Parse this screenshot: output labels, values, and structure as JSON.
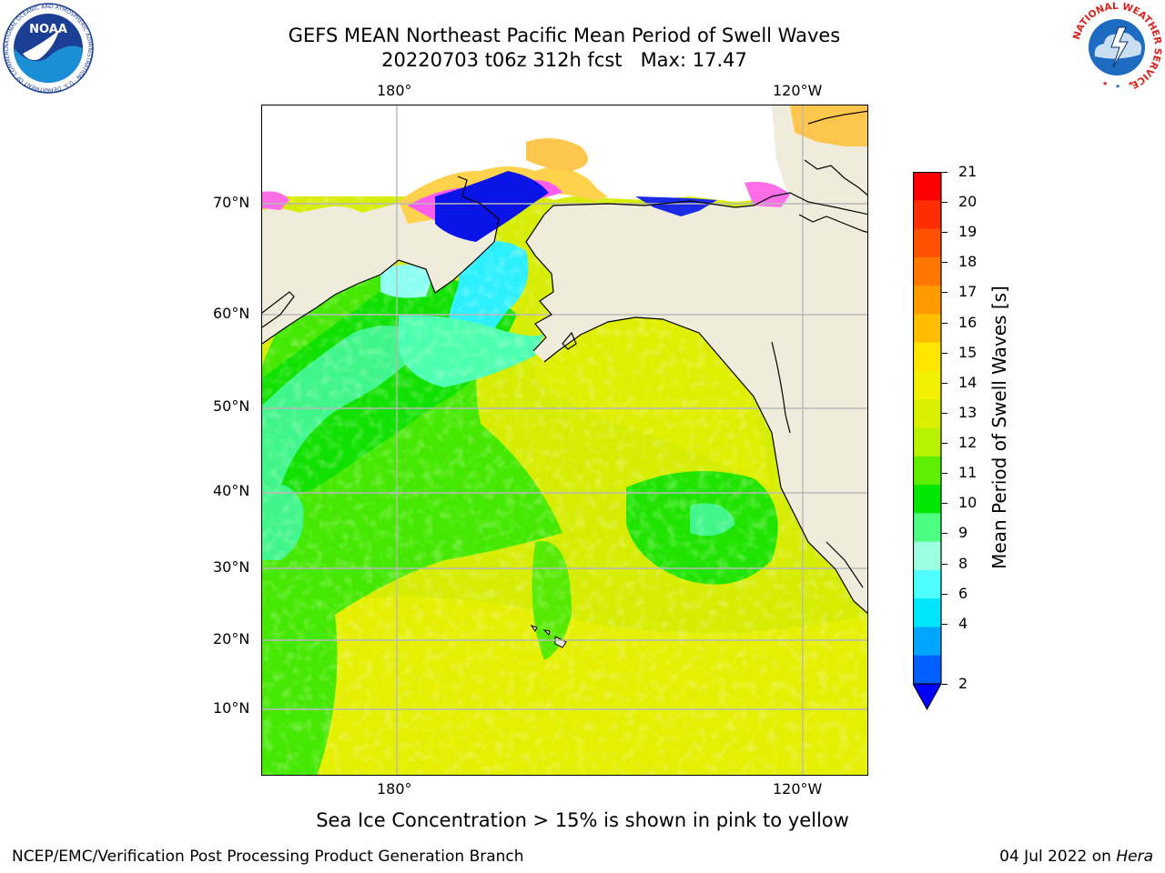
{
  "title": {
    "line1": "GEFS MEAN Northeast Pacific Mean Period of Swell Waves",
    "line2": "20220703 t06z 312h fcst   Max: 17.47"
  },
  "map": {
    "lon_ticks_top": [
      "180°",
      "120°W"
    ],
    "lon_ticks_bottom": [
      "180°",
      "120°W"
    ],
    "lat_ticks": [
      "70°N",
      "60°N",
      "50°N",
      "40°N",
      "30°N",
      "20°N",
      "10°N"
    ],
    "land_color": "#efecdc",
    "grid_color": "#b8b8b8"
  },
  "colorbar": {
    "label": "Mean Period of Swell Waves [s]",
    "tick_labels": [
      "21",
      "20",
      "19",
      "18",
      "17",
      "16",
      "15",
      "14",
      "13",
      "12",
      "11",
      "10",
      "9",
      "8",
      "6",
      "4",
      "2"
    ],
    "colors_top_to_bottom": [
      "#ff0000",
      "#ff2d00",
      "#ff5200",
      "#ff7700",
      "#ff9a00",
      "#ffbf00",
      "#ffe600",
      "#f2f200",
      "#d9f000",
      "#b8f200",
      "#5cf000",
      "#00e600",
      "#4dff80",
      "#9cffe0",
      "#4dffff",
      "#00e6ff",
      "#00a6ff",
      "#0060ff"
    ],
    "extend_color": "#0000ff"
  },
  "footer": {
    "note": "Sea Ice Concentration > 15% is shown in pink to yellow",
    "credit": "NCEP/EMC/Verification Post Processing Product Generation Branch",
    "date": "04 Jul 2022 on",
    "host": "Hera"
  },
  "logos": {
    "noaa": "NOAA",
    "noaa_ring": "NATIONAL OCEANIC AND ATMOSPHERIC ADMINISTRATION · U.S. DEPARTMENT OF COMMERCE",
    "nws_ring": "NATIONAL WEATHER SERVICE"
  }
}
